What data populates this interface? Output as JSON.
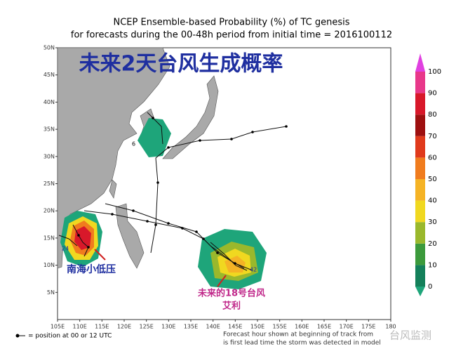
{
  "header": {
    "title": "NCEP Ensemble-based Probability (%) of TC genesis",
    "subtitle": "for forecasts during the 00-48h period from initial time = 2016100112"
  },
  "overlay_title": "未来2天台风生成概率",
  "longitude_labels": [
    "105E",
    "110E",
    "115E",
    "120E",
    "125E",
    "130E",
    "135E",
    "140E",
    "145E",
    "150E",
    "155E",
    "160E",
    "165E",
    "170E",
    "175E",
    "180"
  ],
  "latitude_labels": [
    "50N",
    "45N",
    "40N",
    "35N",
    "30N",
    "25N",
    "20N",
    "15N",
    "10N",
    "5N"
  ],
  "colorbar": {
    "labels": [
      0,
      10,
      20,
      30,
      40,
      50,
      60,
      70,
      80,
      90,
      100
    ],
    "colors": [
      "#1ea57a",
      "#14805a",
      "#3c9a3c",
      "#9ab82c",
      "#f0d820",
      "#f5b325",
      "#f07c1e",
      "#e03a1c",
      "#9e1010",
      "#d8182a",
      "#e8388a",
      "#e040e0"
    ]
  },
  "annotations": {
    "south_china_sea": "南海小低压",
    "future_typhoon": "未来的18号台风",
    "typhoon_name": "艾利"
  },
  "track_labels": [
    "6",
    "24",
    "42"
  ],
  "footer": {
    "legend": "= position at 00 or 12 UTC",
    "note_line1": "Forecast hour shown at beginning of track from",
    "note_line2": "is first lead time the storm was detected in model"
  },
  "watermark": "台风监测"
}
